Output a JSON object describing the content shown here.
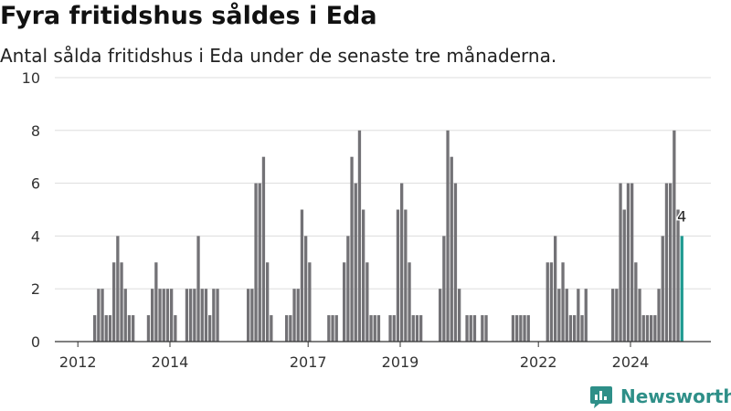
{
  "title": "Fyra fritidshus såldes i Eda",
  "subtitle": "Antal sålda fritidshus i Eda under de senaste tre månaderna.",
  "brand": "Newsworthy",
  "colors": {
    "bar": "#737276",
    "highlight": "#1f9a91",
    "grid": "#dddddd",
    "axis": "#333333",
    "brand": "#2e8f88"
  },
  "chart_data": {
    "type": "bar",
    "title": "Fyra fritidshus såldes i Eda",
    "subtitle": "Antal sålda fritidshus i Eda under de senaste tre månaderna.",
    "xlabel": "",
    "ylabel": "",
    "ylim": [
      0,
      10
    ],
    "yticks": [
      0,
      2,
      4,
      6,
      8,
      10
    ],
    "xtick_labels": [
      "2012",
      "2014",
      "2017",
      "2019",
      "2022",
      "2024"
    ],
    "xtick_positions": [
      2012,
      2014,
      2017,
      2019,
      2022,
      2024
    ],
    "grid": true,
    "x_start": "2011-07",
    "x_step": "month",
    "values": [
      0,
      0,
      0,
      0,
      0,
      0,
      0,
      0,
      0,
      0,
      1,
      2,
      2,
      1,
      1,
      3,
      4,
      3,
      2,
      1,
      1,
      0,
      0,
      0,
      1,
      2,
      3,
      2,
      2,
      2,
      2,
      1,
      0,
      0,
      2,
      2,
      2,
      4,
      2,
      2,
      1,
      2,
      2,
      0,
      0,
      0,
      0,
      0,
      0,
      0,
      2,
      2,
      6,
      6,
      7,
      3,
      1,
      0,
      0,
      0,
      1,
      1,
      2,
      2,
      5,
      4,
      3,
      0,
      0,
      0,
      0,
      1,
      1,
      1,
      0,
      3,
      4,
      7,
      6,
      8,
      5,
      3,
      1,
      1,
      1,
      0,
      0,
      1,
      1,
      5,
      6,
      5,
      3,
      1,
      1,
      1,
      0,
      0,
      0,
      0,
      2,
      4,
      8,
      7,
      6,
      2,
      0,
      1,
      1,
      1,
      0,
      1,
      1,
      0,
      0,
      0,
      0,
      0,
      0,
      1,
      1,
      1,
      1,
      1,
      0,
      0,
      0,
      0,
      3,
      3,
      4,
      2,
      3,
      2,
      1,
      1,
      2,
      1,
      2,
      0,
      0,
      0,
      0,
      0,
      0,
      2,
      2,
      6,
      5,
      6,
      6,
      3,
      2,
      1,
      1,
      1,
      1,
      2,
      4,
      6,
      6,
      8,
      5,
      4
    ],
    "highlight_last": true,
    "annotation": {
      "text": "4"
    }
  }
}
